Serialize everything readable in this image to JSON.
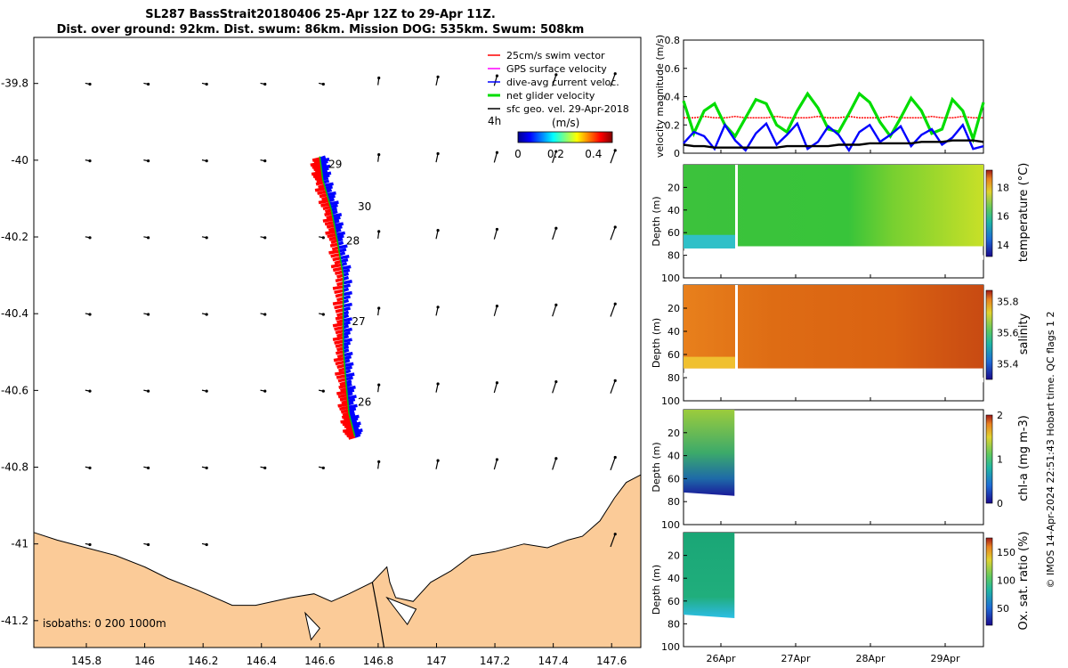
{
  "title_line1": "SL287 BassStrait20180406 25-Apr 12Z to 29-Apr 11Z.",
  "title_line2": "Dist. over ground: 92km. Dist. swum: 86km. Mission DOG: 535km. Swum: 508km",
  "credit": "© IMOS 14-Apr-2024 22:51:43 Hobart time. QC flags 1 2",
  "map": {
    "lon_ticks": [
      "145.8",
      "146",
      "146.2",
      "146.4",
      "146.6",
      "146.8",
      "147",
      "147.2",
      "147.4",
      "147.6"
    ],
    "lat_ticks": [
      "-39.8",
      "-40",
      "-40.2",
      "-40.4",
      "-40.6",
      "-40.8",
      "-41",
      "-41.2"
    ],
    "xlim": [
      145.62,
      147.7
    ],
    "ylim": [
      -41.27,
      -39.68
    ],
    "legend": [
      {
        "label": "25cm/s swim vector",
        "color": "#ff0000"
      },
      {
        "label": "GPS surface velocity",
        "color": "#ff00ff"
      },
      {
        "label": "dive-avg current veloc.",
        "color": "#0000ff"
      },
      {
        "label": "net glider velocity",
        "color": "#00dd00"
      },
      {
        "label": "sfc geo. vel. 29-Apr-2018",
        "color": "#000000"
      }
    ],
    "interval_label": "4h",
    "colorbar_label": "(m/s)",
    "colorbar_ticks": [
      "0",
      "0.2",
      "0.4"
    ],
    "colorbar_range": [
      0,
      0.5
    ],
    "isobath_text": "isobaths: 0   200  1000m",
    "day_labels": [
      {
        "text": "29",
        "lon": 146.63,
        "lat": -40.02
      },
      {
        "text": "30",
        "lon": 146.73,
        "lat": -40.13
      },
      {
        "text": "28",
        "lon": 146.69,
        "lat": -40.22
      },
      {
        "text": "27",
        "lon": 146.71,
        "lat": -40.43
      },
      {
        "text": "26",
        "lon": 146.73,
        "lat": -40.64
      }
    ],
    "track": [
      {
        "lon": 146.72,
        "lat": -40.72
      },
      {
        "lon": 146.7,
        "lat": -40.66
      },
      {
        "lon": 146.69,
        "lat": -40.58
      },
      {
        "lon": 146.68,
        "lat": -40.49
      },
      {
        "lon": 146.68,
        "lat": -40.4
      },
      {
        "lon": 146.68,
        "lat": -40.3
      },
      {
        "lon": 146.66,
        "lat": -40.21
      },
      {
        "lon": 146.64,
        "lat": -40.13
      },
      {
        "lon": 146.61,
        "lat": -40.05
      },
      {
        "lon": 146.6,
        "lat": -39.99
      }
    ]
  },
  "panels": {
    "velocity": {
      "ylabel": "velocity magnitude (m/s)",
      "yticks": [
        "0",
        "0.2",
        "0.4",
        "0.6",
        "0.8"
      ],
      "ylim": [
        0,
        0.8
      ],
      "series": [
        {
          "name": "25cm/s swim vector",
          "color": "#ff0000",
          "values": [
            0.25,
            0.25,
            0.26,
            0.25,
            0.25,
            0.26,
            0.25,
            0.25,
            0.25,
            0.26,
            0.25,
            0.25,
            0.25,
            0.26,
            0.25,
            0.25,
            0.26,
            0.25,
            0.25,
            0.25,
            0.26,
            0.25,
            0.25,
            0.25,
            0.26,
            0.25,
            0.25,
            0.26,
            0.25,
            0.25
          ]
        },
        {
          "name": "net glider velocity",
          "color": "#00dd00",
          "values": [
            0.37,
            0.14,
            0.3,
            0.35,
            0.2,
            0.12,
            0.25,
            0.38,
            0.35,
            0.2,
            0.15,
            0.3,
            0.42,
            0.32,
            0.17,
            0.15,
            0.28,
            0.42,
            0.36,
            0.22,
            0.12,
            0.25,
            0.39,
            0.3,
            0.14,
            0.17,
            0.38,
            0.3,
            0.1,
            0.36
          ]
        },
        {
          "name": "dive-avg current veloc.",
          "color": "#0000ff",
          "values": [
            0.07,
            0.15,
            0.12,
            0.03,
            0.2,
            0.09,
            0.02,
            0.14,
            0.21,
            0.06,
            0.13,
            0.21,
            0.03,
            0.08,
            0.19,
            0.13,
            0.02,
            0.15,
            0.2,
            0.08,
            0.13,
            0.19,
            0.05,
            0.13,
            0.17,
            0.06,
            0.11,
            0.2,
            0.03,
            0.05
          ]
        },
        {
          "name": "sfc geo. vel. 29-Apr-2018",
          "color": "#000000",
          "values": [
            0.06,
            0.05,
            0.05,
            0.04,
            0.04,
            0.04,
            0.04,
            0.04,
            0.04,
            0.04,
            0.05,
            0.05,
            0.05,
            0.05,
            0.05,
            0.06,
            0.06,
            0.06,
            0.07,
            0.07,
            0.07,
            0.07,
            0.07,
            0.08,
            0.08,
            0.08,
            0.09,
            0.09,
            0.09,
            0.08
          ]
        }
      ]
    },
    "depth_yticks": [
      "20",
      "40",
      "60",
      "80",
      "100"
    ],
    "depth_ylabel": "Depth (m)",
    "time_ticks": [
      "26Apr",
      "27Apr",
      "28Apr",
      "29Apr"
    ],
    "temperature": {
      "label": "temperature (°C)",
      "cticks": [
        "14",
        "16",
        "18"
      ],
      "crange": [
        13.2,
        19.2
      ]
    },
    "salinity": {
      "label": "salinity",
      "cticks": [
        "35.4",
        "35.6",
        "35.8"
      ],
      "crange": [
        35.3,
        35.87
      ]
    },
    "chla": {
      "label": "chl-a (mg m-3)",
      "cticks": [
        "0",
        "1",
        "2"
      ],
      "crange": [
        0,
        2
      ]
    },
    "oxygen": {
      "label": "Ox. sat. ratio (%)",
      "cticks": [
        "50",
        "100",
        "150"
      ],
      "crange": [
        20,
        175
      ]
    }
  },
  "colors": {
    "land": "#fbcb98",
    "sea": "#ffffff"
  }
}
